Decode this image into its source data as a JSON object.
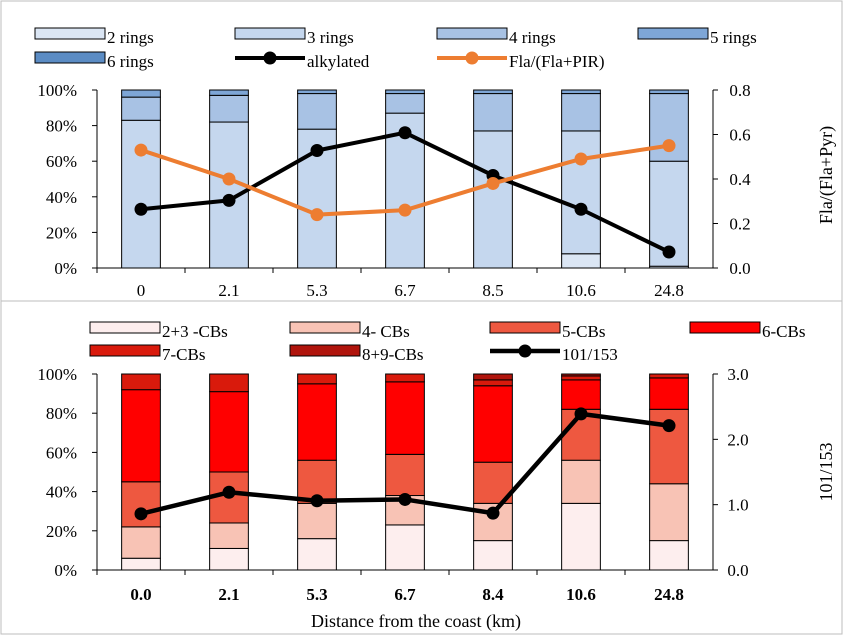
{
  "chart_data": [
    {
      "type": "bar",
      "stacked": true,
      "categories": [
        "0",
        "2.1",
        "5.3",
        "6.7",
        "8.5",
        "10.6",
        "24.8"
      ],
      "ylim": [
        0,
        100
      ],
      "y_ticks": [
        "0%",
        "20%",
        "40%",
        "60%",
        "80%",
        "100%"
      ],
      "y2_label": "Fla/(Fla+Pyr)",
      "y2lim": [
        0,
        0.8
      ],
      "y2_ticks": [
        "0.0",
        "0.2",
        "0.4",
        "0.6",
        "0.8"
      ],
      "grid": false,
      "legend_position": "top",
      "series": [
        {
          "name": "2 rings",
          "color": "#dbe6f4",
          "values": [
            0,
            0,
            0,
            0,
            0,
            8,
            1
          ]
        },
        {
          "name": "3 rings",
          "color": "#c5d7ee",
          "values": [
            83,
            82,
            78,
            87,
            77,
            69,
            59
          ]
        },
        {
          "name": "4 rings",
          "color": "#a8c2e4",
          "values": [
            13,
            15,
            20,
            11,
            21,
            21,
            38
          ]
        },
        {
          "name": "5 rings",
          "color": "#7ea6d6",
          "values": [
            4,
            3,
            2,
            2,
            2,
            2,
            2
          ]
        },
        {
          "name": "6 rings",
          "color": "#5b8cc4",
          "values": [
            0,
            0,
            0,
            0,
            0,
            0,
            0
          ]
        }
      ],
      "line_series": [
        {
          "name": "alkylated",
          "color": "#000000",
          "axis": "y",
          "values": [
            33,
            38,
            66,
            76,
            52,
            33,
            9
          ]
        },
        {
          "name": "Fla/(Fla+PIR)",
          "color": "#ed7d31",
          "axis": "y2",
          "values": [
            0.53,
            0.4,
            0.24,
            0.26,
            0.38,
            0.49,
            0.55
          ]
        }
      ]
    },
    {
      "type": "bar",
      "stacked": true,
      "categories": [
        "0.0",
        "2.1",
        "5.3",
        "6.7",
        "8.4",
        "10.6",
        "24.8"
      ],
      "xlabel": "Distance from the coast (km)",
      "ylim": [
        0,
        100
      ],
      "y_ticks": [
        "0%",
        "20%",
        "40%",
        "60%",
        "80%",
        "100%"
      ],
      "y2_label": "101/153",
      "y2lim": [
        0,
        3
      ],
      "y2_ticks": [
        "0.0",
        "1.0",
        "2.0",
        "3.0"
      ],
      "grid": false,
      "legend_position": "top",
      "series": [
        {
          "name": "2+3 -CBs",
          "color": "#fdeeee",
          "values": [
            6,
            11,
            16,
            23,
            15,
            34,
            15
          ]
        },
        {
          "name": "4- CBs",
          "color": "#f8c3b5",
          "values": [
            16,
            13,
            18,
            15,
            19,
            22,
            29
          ]
        },
        {
          "name": "5-CBs",
          "color": "#ee5840",
          "values": [
            23,
            26,
            22,
            21,
            21,
            26,
            38
          ]
        },
        {
          "name": "6-CBs",
          "color": "#ff0000",
          "values": [
            47,
            41,
            39,
            37,
            39,
            15,
            16
          ]
        },
        {
          "name": "7-CBs",
          "color": "#d91a0c",
          "values": [
            8,
            9,
            5,
            4,
            3,
            2,
            2
          ]
        },
        {
          "name": "8+9-CBs",
          "color": "#b0140c",
          "values": [
            0,
            0,
            0,
            0,
            3,
            1,
            0
          ]
        }
      ],
      "line_series": [
        {
          "name": "101/153",
          "color": "#000000",
          "axis": "y2",
          "values": [
            0.86,
            1.19,
            1.06,
            1.08,
            0.87,
            2.39,
            2.21
          ]
        }
      ]
    }
  ]
}
